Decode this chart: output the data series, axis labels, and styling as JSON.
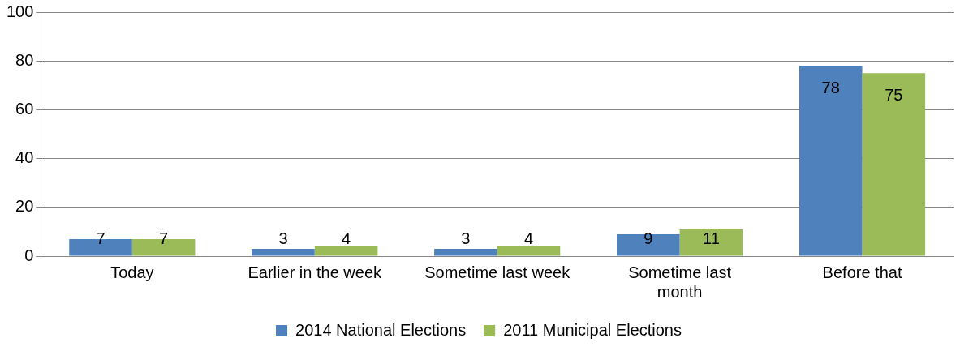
{
  "chart_data": {
    "type": "bar",
    "categories": [
      "Today",
      "Earlier in the week",
      "Sometime last week",
      "Sometime last month",
      "Before that"
    ],
    "series": [
      {
        "name": "2014 National Elections",
        "color": "#4f81bd",
        "values": [
          7,
          3,
          3,
          9,
          78
        ]
      },
      {
        "name": "2011 Municipal Elections",
        "color": "#9bbb59",
        "values": [
          7,
          4,
          4,
          11,
          75
        ]
      }
    ],
    "ylim": [
      0,
      100
    ],
    "yticks": [
      0,
      20,
      40,
      60,
      80,
      100
    ],
    "grid": "y",
    "legend": "bottom",
    "data_labels": true
  }
}
